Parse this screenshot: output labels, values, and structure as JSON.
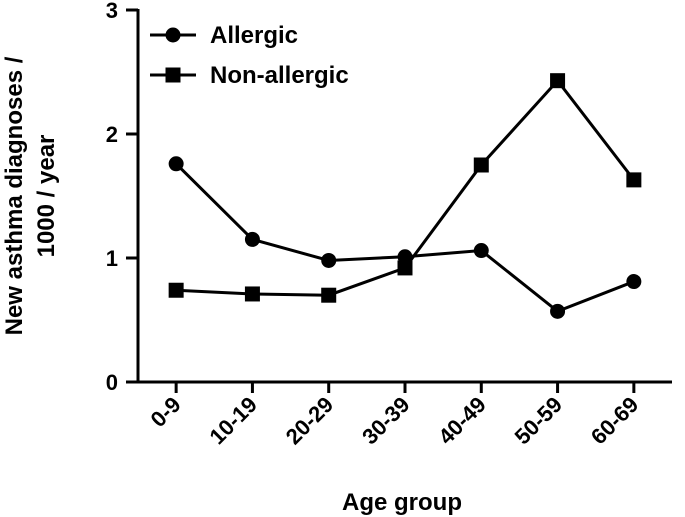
{
  "chart_data": {
    "type": "line",
    "xlabel": "Age group",
    "ylabel_lines": [
      "New asthma diagnoses /",
      "1000 / year"
    ],
    "categories": [
      "0-9",
      "10-19",
      "20-29",
      "30-39",
      "40-49",
      "50-59",
      "60-69"
    ],
    "ylim": [
      0,
      3
    ],
    "yticks": [
      "0",
      "1",
      "2",
      "3"
    ],
    "grid": false,
    "legend_position": "top-left",
    "series": [
      {
        "name": "Allergic",
        "marker": "circle",
        "color": "#000000",
        "values": [
          1.76,
          1.15,
          0.98,
          1.01,
          1.06,
          0.57,
          0.81
        ]
      },
      {
        "name": "Non-allergic",
        "marker": "square",
        "color": "#000000",
        "values": [
          0.74,
          0.71,
          0.7,
          0.92,
          1.75,
          2.43,
          1.63
        ]
      }
    ]
  }
}
